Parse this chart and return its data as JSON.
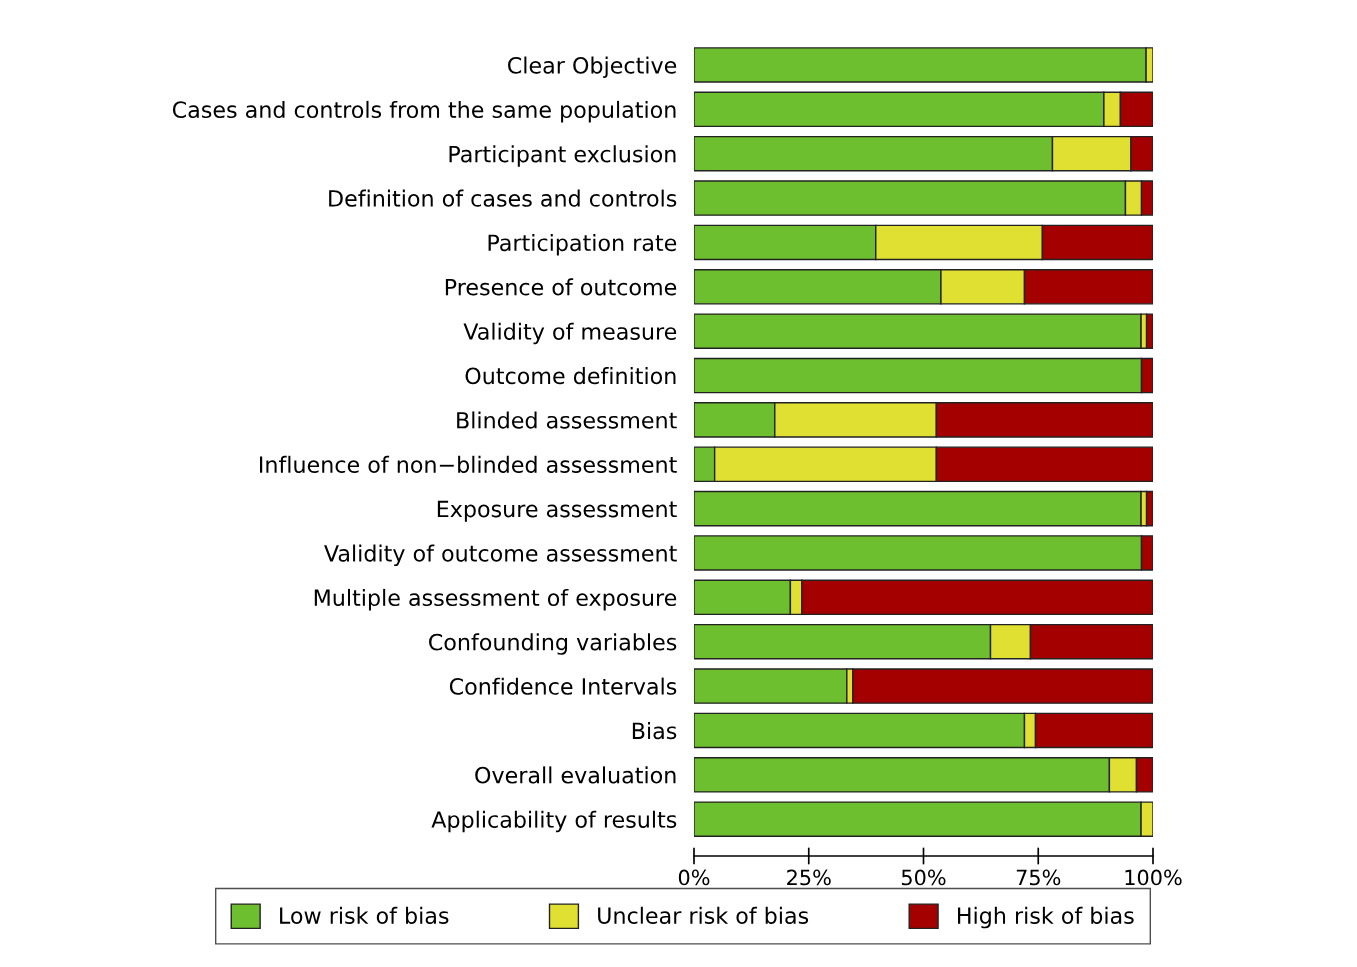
{
  "chart_data": {
    "type": "bar",
    "orientation": "horizontal",
    "stacked": true,
    "categories": [
      "Clear Objective",
      "Cases and controls from the same population",
      "Participant exclusion",
      "Definition of cases and controls",
      "Participation rate",
      "Presence of outcome",
      "Validity of measure",
      "Outcome definition",
      "Blinded assessment",
      "Influence of non−blinded assessment",
      "Exposure assessment",
      "Validity of outcome assessment",
      "Multiple assessment of exposure",
      "Confounding variables",
      "Confidence Intervals",
      "Bias",
      "Overall evaluation",
      "Applicability of results"
    ],
    "series": [
      {
        "name": "Low risk of bias",
        "color": "#6dbf2f",
        "values": [
          98.5,
          89.3,
          78.1,
          94.0,
          39.6,
          53.8,
          97.4,
          97.5,
          17.6,
          4.5,
          97.4,
          97.5,
          21.0,
          64.6,
          33.3,
          72.0,
          90.5,
          97.4
        ]
      },
      {
        "name": "Unclear risk of bias",
        "color": "#e0e033",
        "values": [
          1.5,
          3.6,
          17.1,
          3.5,
          36.3,
          18.2,
          1.2,
          0,
          35.2,
          48.3,
          1.2,
          0,
          2.5,
          8.7,
          1.3,
          2.4,
          5.9,
          2.6
        ]
      },
      {
        "name": "High risk of bias",
        "color": "#a50000",
        "values": [
          0,
          7.1,
          4.8,
          2.5,
          24.1,
          28.0,
          1.4,
          2.5,
          47.2,
          47.2,
          1.4,
          2.5,
          76.5,
          26.7,
          65.4,
          25.6,
          3.6,
          0
        ]
      }
    ],
    "xlim": [
      0,
      100
    ],
    "xticks": [
      {
        "value": 0,
        "label": "0%"
      },
      {
        "value": 25,
        "label": "25%"
      },
      {
        "value": 50,
        "label": "50%"
      },
      {
        "value": 75,
        "label": "75%"
      },
      {
        "value": 100,
        "label": "100%"
      }
    ],
    "grid": false,
    "legend": "bottom"
  }
}
